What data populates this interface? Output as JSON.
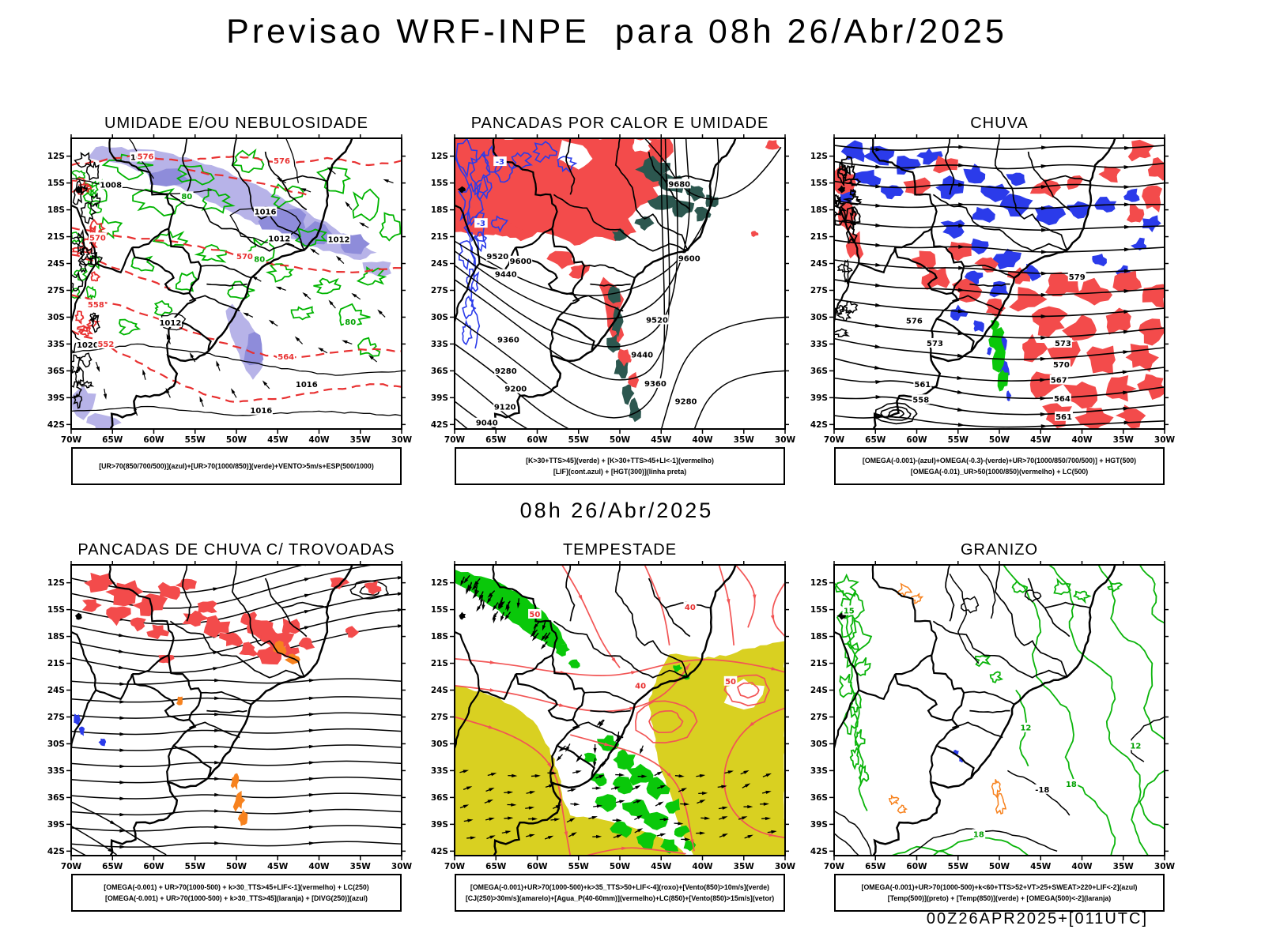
{
  "page": {
    "title": "Previsao WRF-INPE  para 08h 26/Abr/2025",
    "mid_date": "08h 26/Abr/2025",
    "footer": "00Z26APR2025+[011UTC]"
  },
  "axes": {
    "lat_ticks": [
      "12S",
      "15S",
      "18S",
      "21S",
      "24S",
      "27S",
      "30S",
      "33S",
      "36S",
      "39S",
      "42S"
    ],
    "lon_ticks": [
      "70W",
      "65W",
      "60W",
      "55W",
      "50W",
      "45W",
      "40W",
      "35W",
      "30W"
    ]
  },
  "colors": {
    "red_fill": "#f34b4b",
    "red_line": "#e83030",
    "teal": "#2c574f",
    "blue": "#2b3bea",
    "green_line": "#00b400",
    "green_fill": "#0ac80a",
    "yellow": "#d9d021",
    "lavender": "#b7b3e8",
    "lavender_dark": "#8e8cda",
    "orange": "#f7821e",
    "black": "#000000"
  },
  "panels": {
    "umidade": {
      "title": "UMIDADE E/OU NEBULOSIDADE",
      "caption1": "[UR>70(850/700/500)](azul)+[UR>70(1000/850)](verde)+VENTO>5m/s+ESP(500/1000)",
      "contour_labels": {
        "black": [
          "1008",
          "1012",
          "1016",
          "1012",
          "1012",
          "1012",
          "1020",
          "1016",
          "1016"
        ],
        "red": [
          "576",
          "576",
          "570",
          "570",
          "564",
          "558",
          "552"
        ],
        "green": [
          "80",
          "80",
          "80"
        ]
      }
    },
    "pancadas_calor": {
      "title": "PANCADAS POR CALOR E UMIDADE",
      "caption1": "[K>30+TTS>45](verde) + [K>30+TTS>45+LI<-1](vermelho)",
      "caption2": "[LIF](cont.azul) + [HGT(300)](linha preta)",
      "contour_labels": {
        "black": [
          "9680",
          "9600",
          "9600",
          "9520",
          "9520",
          "9440",
          "9440",
          "9360",
          "9360",
          "9280",
          "9280",
          "9200",
          "9120",
          "9040"
        ],
        "blue": [
          "-3",
          "-3"
        ]
      }
    },
    "chuva": {
      "title": "CHUVA",
      "caption1": "[OMEGA(-0.001)-(azul)+OMEGA(-0.3)-(verde)+UR>70(1000/850/700/500)] + HGT(500)",
      "caption2": "[OMEGA(-0.01)_UR>50(1000/850)(vermelho) + LC(500)",
      "contour_labels": {
        "black": [
          "579",
          "576",
          "573",
          "570",
          "567",
          "564",
          "561",
          "573",
          "561",
          "558"
        ]
      }
    },
    "trovoadas": {
      "title": "PANCADAS DE CHUVA C/ TROVOADAS",
      "caption1": "[OMEGA(-0.001) + UR>70(1000-500) + k>30_TTS>45+LIF<-1](vermelho) + LC(250)",
      "caption2": "[OMEGA(-0.001) + UR>70(1000-500) + k>30_TTS>45](laranja) + [DIVG(250)](azul)",
      "contour_labels": {}
    },
    "tempestade": {
      "title": "TEMPESTADE",
      "caption1": "[OMEGA(-0.001)+UR>70(1000-500)+k>35_TTS>50+LIF<-4](roxo)+[Vento(850)>10m/s](verde)",
      "caption2": "[CJ(250)>30m/s](amarelo)+[Agua_P(40-60mm)](vermelho)+LC(850)+[Vento(850)>15m/s](vetor)",
      "contour_labels": {
        "red": [
          "40",
          "50",
          "50",
          "40"
        ]
      }
    },
    "granizo": {
      "title": "GRANIZO",
      "caption1": "[OMEGA(-0.001)+UR>70(1000-500)+k<60+TTS>52+VT>25+SWEAT>220+LIF<-2](azul)",
      "caption2": "[Temp(500)](preto) + [Temp(850)](verde) + [OMEGA(500)<-2](laranja)",
      "contour_labels": {
        "green": [
          "15",
          "12",
          "18",
          "12",
          "18"
        ],
        "black": [
          "-18"
        ]
      }
    }
  },
  "chart_data": [
    {
      "type": "map",
      "title": "UMIDADE E/OU NEBULOSIDADE",
      "region": "South America 70W-30W, 12S-42S",
      "legend": "[UR>70(850/700/500)](azul)+[UR>70(1000/850)](verde)+VENTO>5m/s+ESP(500/1000)",
      "pressure_contour_labels": [
        1008,
        1012,
        1016,
        1020
      ],
      "thickness_contour_labels": [
        552,
        558,
        564,
        570,
        576
      ]
    },
    {
      "type": "map",
      "title": "PANCADAS POR CALOR E UMIDADE",
      "region": "South America 70W-30W, 12S-42S",
      "legend": "[K>30+TTS>45](verde) + [K>30+TTS>45+LI<-1](vermelho); [LIF](cont.azul) + [HGT(300)](linha preta)",
      "hgt300_contour_labels": [
        9040,
        9120,
        9200,
        9280,
        9360,
        9440,
        9520,
        9600,
        9680
      ],
      "lif_labels": [
        -3
      ]
    },
    {
      "type": "map",
      "title": "CHUVA",
      "region": "South America 70W-30W, 12S-42S",
      "legend": "[OMEGA(-0.001)-(azul)+OMEGA(-0.3)-(verde)+UR>70(1000/850/700/500)] + HGT(500); [OMEGA(-0.01)_UR>50(1000/850)(vermelho) + LC(500)",
      "hgt500_contour_labels": [
        558,
        561,
        564,
        567,
        570,
        573,
        576,
        579
      ]
    },
    {
      "type": "map",
      "title": "PANCADAS DE CHUVA C/ TROVOADAS",
      "region": "South America 70W-30W, 12S-42S",
      "legend": "[OMEGA(-0.001) + UR>70(1000-500) + k>30_TTS>45+LIF<-1](vermelho) + LC(250); laranja variant + [DIVG(250)](azul)"
    },
    {
      "type": "map",
      "title": "TEMPESTADE",
      "region": "South America 70W-30W, 12S-42S",
      "legend": "[OMEGA(-0.001)+UR>70(1000-500)+k>35_TTS>50+LIF<-4](roxo)+[Vento(850)>10m/s](verde); [CJ(250)>30m/s](amarelo)+[Agua_P(40-60mm)](vermelho)+LC(850)+[Vento(850)>15m/s](vetor)",
      "jet_contour_labels": [
        40,
        50
      ]
    },
    {
      "type": "map",
      "title": "GRANIZO",
      "region": "South America 70W-30W, 12S-42S",
      "legend": "[OMEGA(-0.001)+UR>70(1000-500)+k<60+TTS>52+VT>25+SWEAT>220+LIF<-2](azul); [Temp(500)](preto) + [Temp(850)](verde) + [OMEGA(500)<-2](laranja)",
      "temp_labels": [
        -18,
        12,
        15,
        18
      ]
    }
  ]
}
